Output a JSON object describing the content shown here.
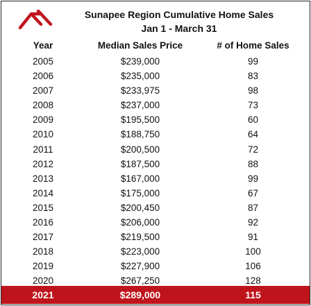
{
  "logo_color": "#c0141c",
  "highlight_color": "#c0141c",
  "title": {
    "line1": "Sunapee Region Cumulative Home Sales",
    "line2": "Jan 1 - March 31"
  },
  "columns": {
    "year": "Year",
    "price": "Median Sales Price",
    "sales": "# of Home Sales"
  },
  "rows": [
    {
      "year": "2005",
      "price": "$239,000",
      "sales": "99"
    },
    {
      "year": "2006",
      "price": "$235,000",
      "sales": "83"
    },
    {
      "year": "2007",
      "price": "$233,975",
      "sales": "98"
    },
    {
      "year": "2008",
      "price": "$237,000",
      "sales": "73"
    },
    {
      "year": "2009",
      "price": "$195,500",
      "sales": "60"
    },
    {
      "year": "2010",
      "price": "$188,750",
      "sales": "64"
    },
    {
      "year": "2011",
      "price": "$200,500",
      "sales": "72"
    },
    {
      "year": "2012",
      "price": "$187,500",
      "sales": "88"
    },
    {
      "year": "2013",
      "price": "$167,000",
      "sales": "99"
    },
    {
      "year": "2014",
      "price": "$175,000",
      "sales": "67"
    },
    {
      "year": "2015",
      "price": "$200,450",
      "sales": "87"
    },
    {
      "year": "2016",
      "price": "$206,000",
      "sales": "92"
    },
    {
      "year": "2017",
      "price": "$219,500",
      "sales": "91"
    },
    {
      "year": "2018",
      "price": "$223,000",
      "sales": "100"
    },
    {
      "year": "2019",
      "price": "$227,900",
      "sales": "106"
    },
    {
      "year": "2020",
      "price": "$267,250",
      "sales": "128"
    }
  ],
  "highlight": {
    "year": "2021",
    "price": "$289,000",
    "sales": "115"
  }
}
